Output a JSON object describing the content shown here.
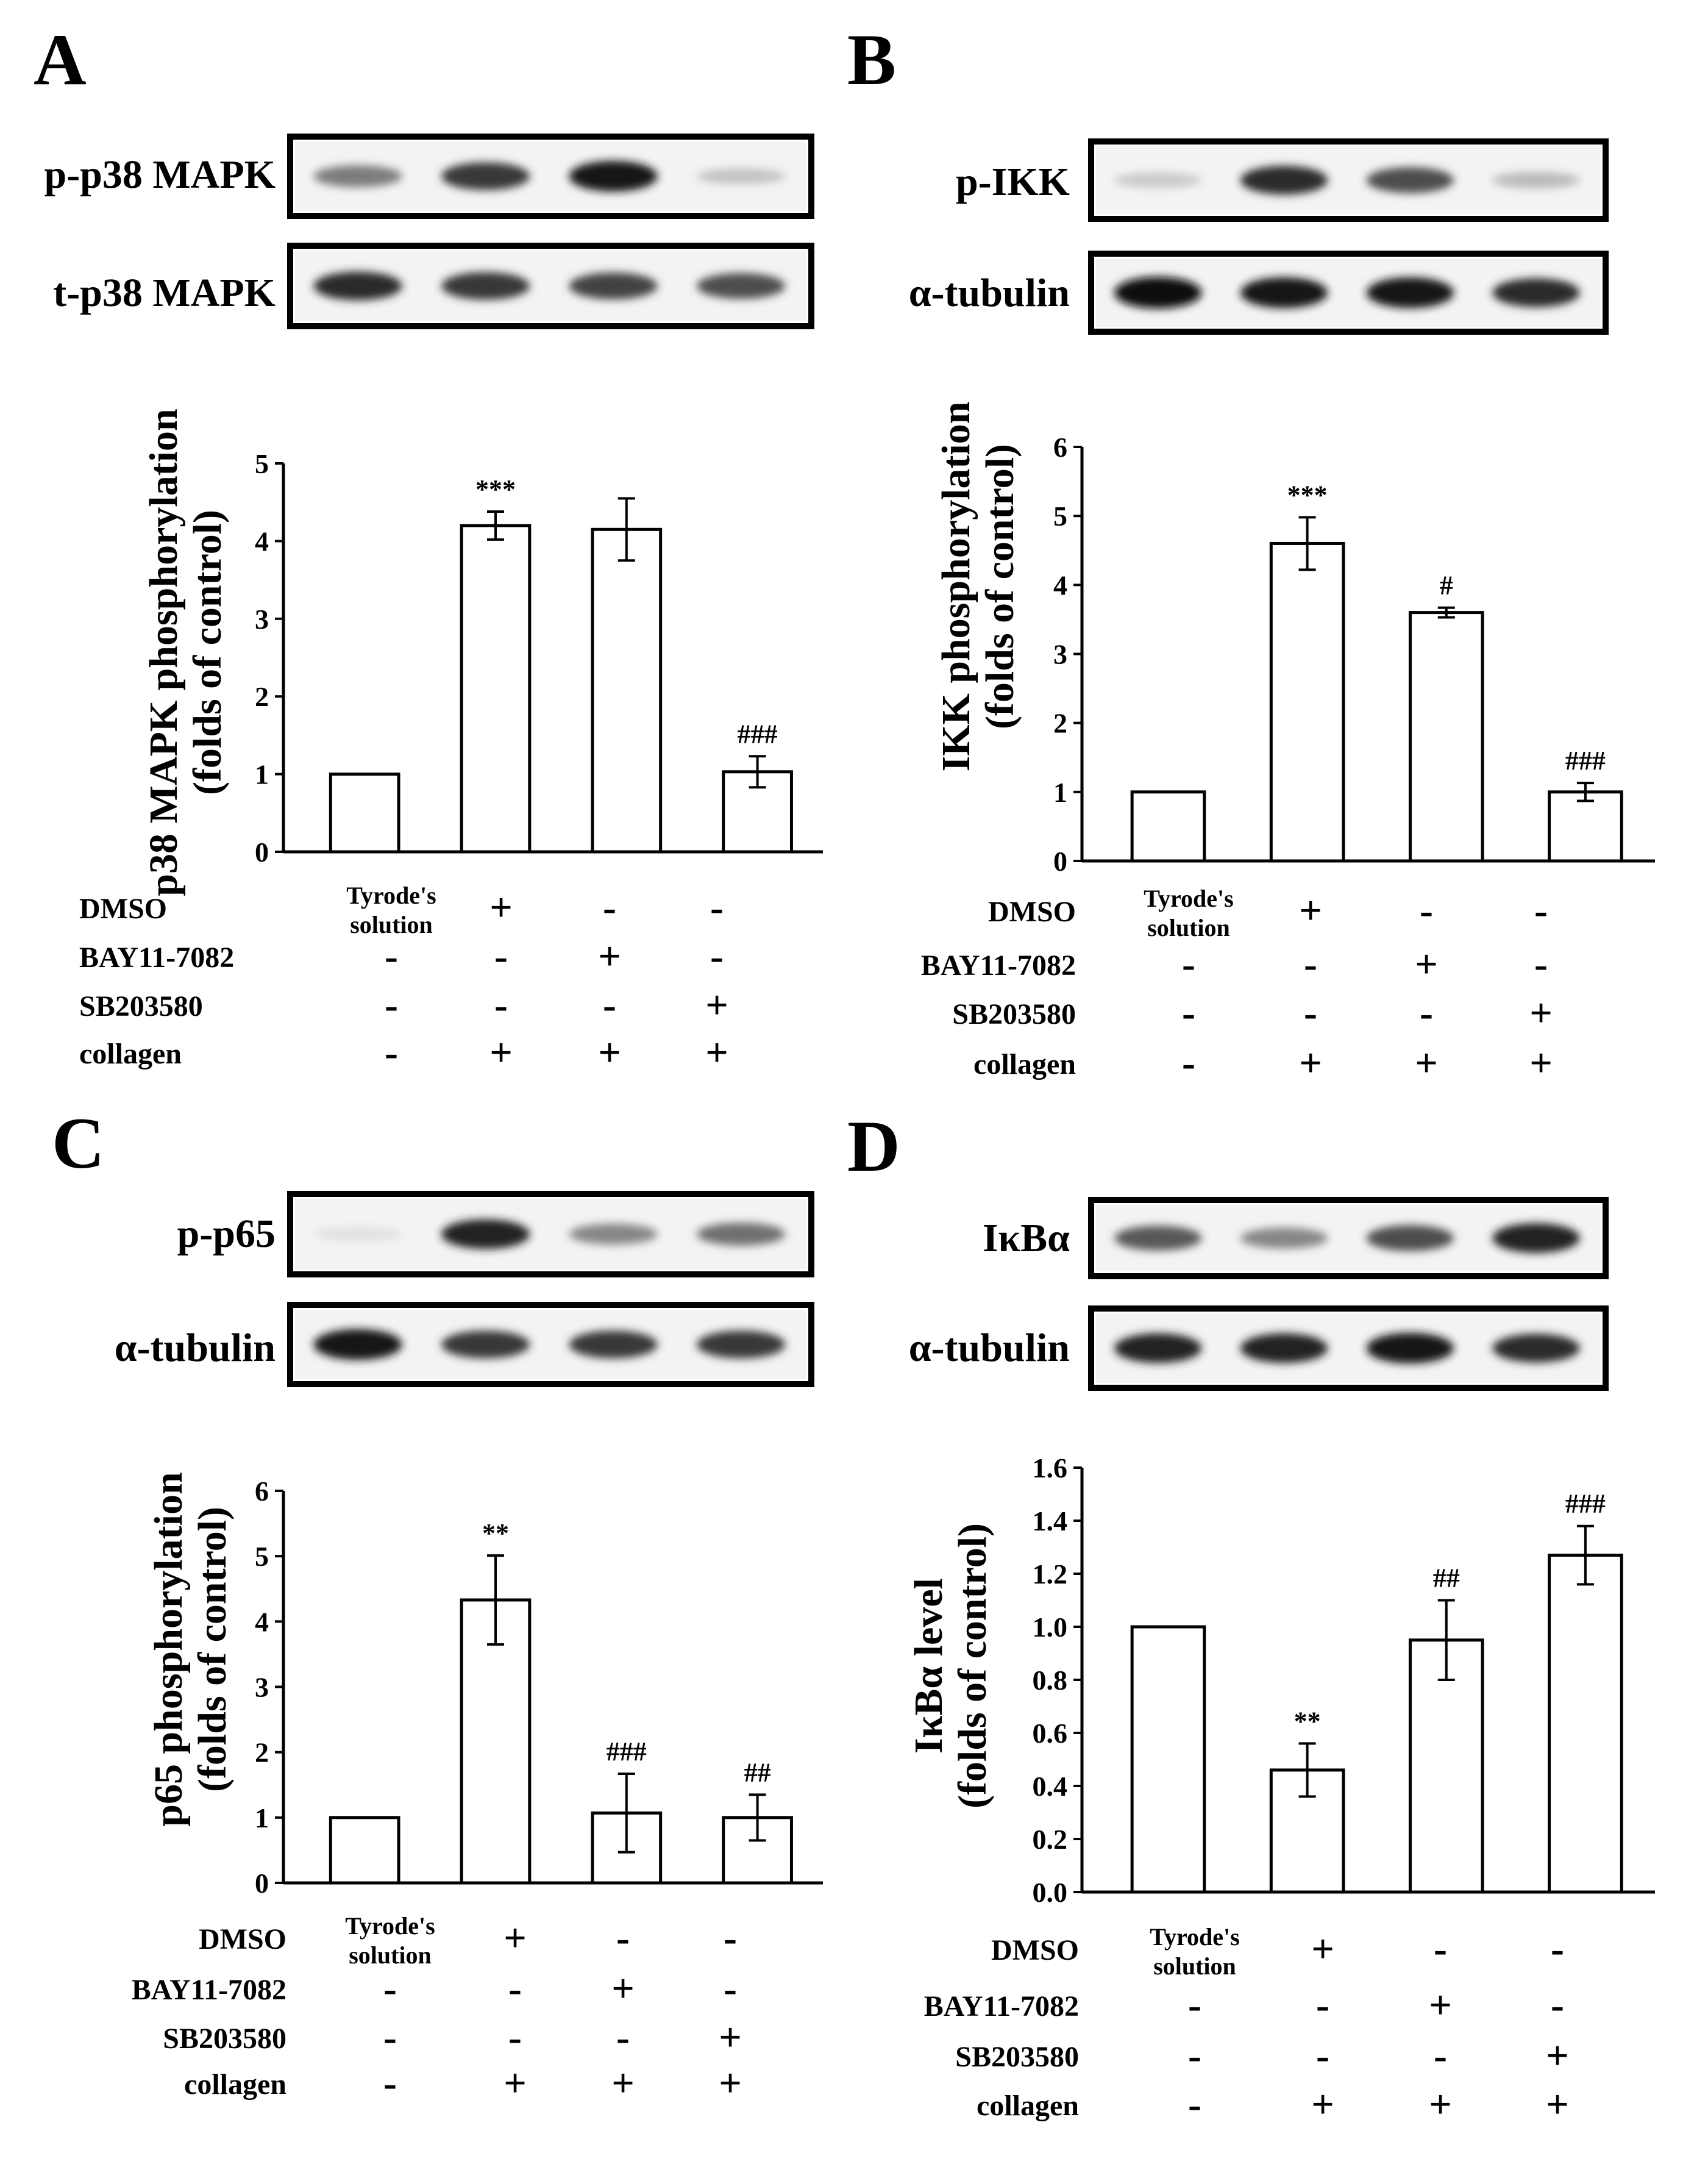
{
  "conditions": {
    "row_labels": [
      "DMSO",
      "BAY11-7082",
      "SB203580",
      "collagen"
    ],
    "tyrode_text": [
      "Tyrode's",
      "solution"
    ],
    "signs": [
      [
        "",
        "+",
        "-",
        "-"
      ],
      [
        "-",
        "-",
        "+",
        "-"
      ],
      [
        "-",
        "-",
        "-",
        "+"
      ],
      [
        "-",
        "+",
        "+",
        "+"
      ]
    ]
  },
  "chart_data": [
    {
      "panel": "A",
      "type": "bar",
      "blots": [
        {
          "label": "p-p38 MAPK",
          "intensity": [
            0.5,
            0.8,
            0.95,
            0.18
          ]
        },
        {
          "label": "t-p38 MAPK",
          "intensity": [
            0.85,
            0.8,
            0.75,
            0.7
          ]
        }
      ],
      "ylabel_lines": [
        "p38 MAPK phosphorylation",
        "(folds of control)"
      ],
      "ylim": [
        0,
        5
      ],
      "yticks": [
        "0",
        "1",
        "2",
        "3",
        "4",
        "5"
      ],
      "values": [
        1.0,
        4.2,
        4.15,
        1.03
      ],
      "errors": [
        0,
        0.18,
        0.4,
        0.2
      ],
      "significance": [
        "",
        "***",
        "",
        "###"
      ]
    },
    {
      "panel": "B",
      "type": "bar",
      "blots": [
        {
          "label": "p-IKK",
          "intensity": [
            0.15,
            0.85,
            0.7,
            0.22
          ]
        },
        {
          "label": "α-tubulin",
          "intensity": [
            1.0,
            0.95,
            0.95,
            0.85
          ]
        }
      ],
      "ylabel_lines": [
        "IKK phosphorylation",
        "(folds of control)"
      ],
      "ylim": [
        0,
        6
      ],
      "yticks": [
        "0",
        "1",
        "2",
        "3",
        "4",
        "5",
        "6"
      ],
      "values": [
        1.0,
        4.6,
        3.6,
        1.0
      ],
      "errors": [
        0,
        0.38,
        0.07,
        0.13
      ],
      "significance": [
        "",
        "***",
        "#",
        "###"
      ]
    },
    {
      "panel": "C",
      "type": "bar",
      "blots": [
        {
          "label": "p-p65",
          "intensity": [
            0.05,
            0.9,
            0.45,
            0.55
          ]
        },
        {
          "label": "α-tubulin",
          "intensity": [
            0.95,
            0.8,
            0.8,
            0.8
          ]
        }
      ],
      "ylabel_lines": [
        "p65 phosphorylation",
        "(folds of control)"
      ],
      "ylim": [
        0,
        6
      ],
      "yticks": [
        "0",
        "1",
        "2",
        "3",
        "4",
        "5",
        "6"
      ],
      "values": [
        1.0,
        4.33,
        1.07,
        1.0
      ],
      "errors": [
        0,
        0.68,
        0.6,
        0.35
      ],
      "significance": [
        "",
        "**",
        "###",
        "##"
      ]
    },
    {
      "panel": "D",
      "type": "bar",
      "blots": [
        {
          "label": "IκBα",
          "intensity": [
            0.65,
            0.45,
            0.7,
            0.9
          ]
        },
        {
          "label": "α-tubulin",
          "intensity": [
            0.9,
            0.9,
            0.95,
            0.85
          ]
        }
      ],
      "ylabel_lines": [
        "IκBα level",
        "(folds of control)"
      ],
      "ylim": [
        0,
        1.6
      ],
      "yticks": [
        "0.0",
        "0.2",
        "0.4",
        "0.6",
        "0.8",
        "1.0",
        "1.2",
        "1.4",
        "1.6"
      ],
      "values": [
        1.0,
        0.46,
        0.95,
        1.27
      ],
      "errors": [
        0,
        0.1,
        0.15,
        0.11
      ],
      "significance": [
        "",
        "**",
        "##",
        "###"
      ]
    }
  ]
}
